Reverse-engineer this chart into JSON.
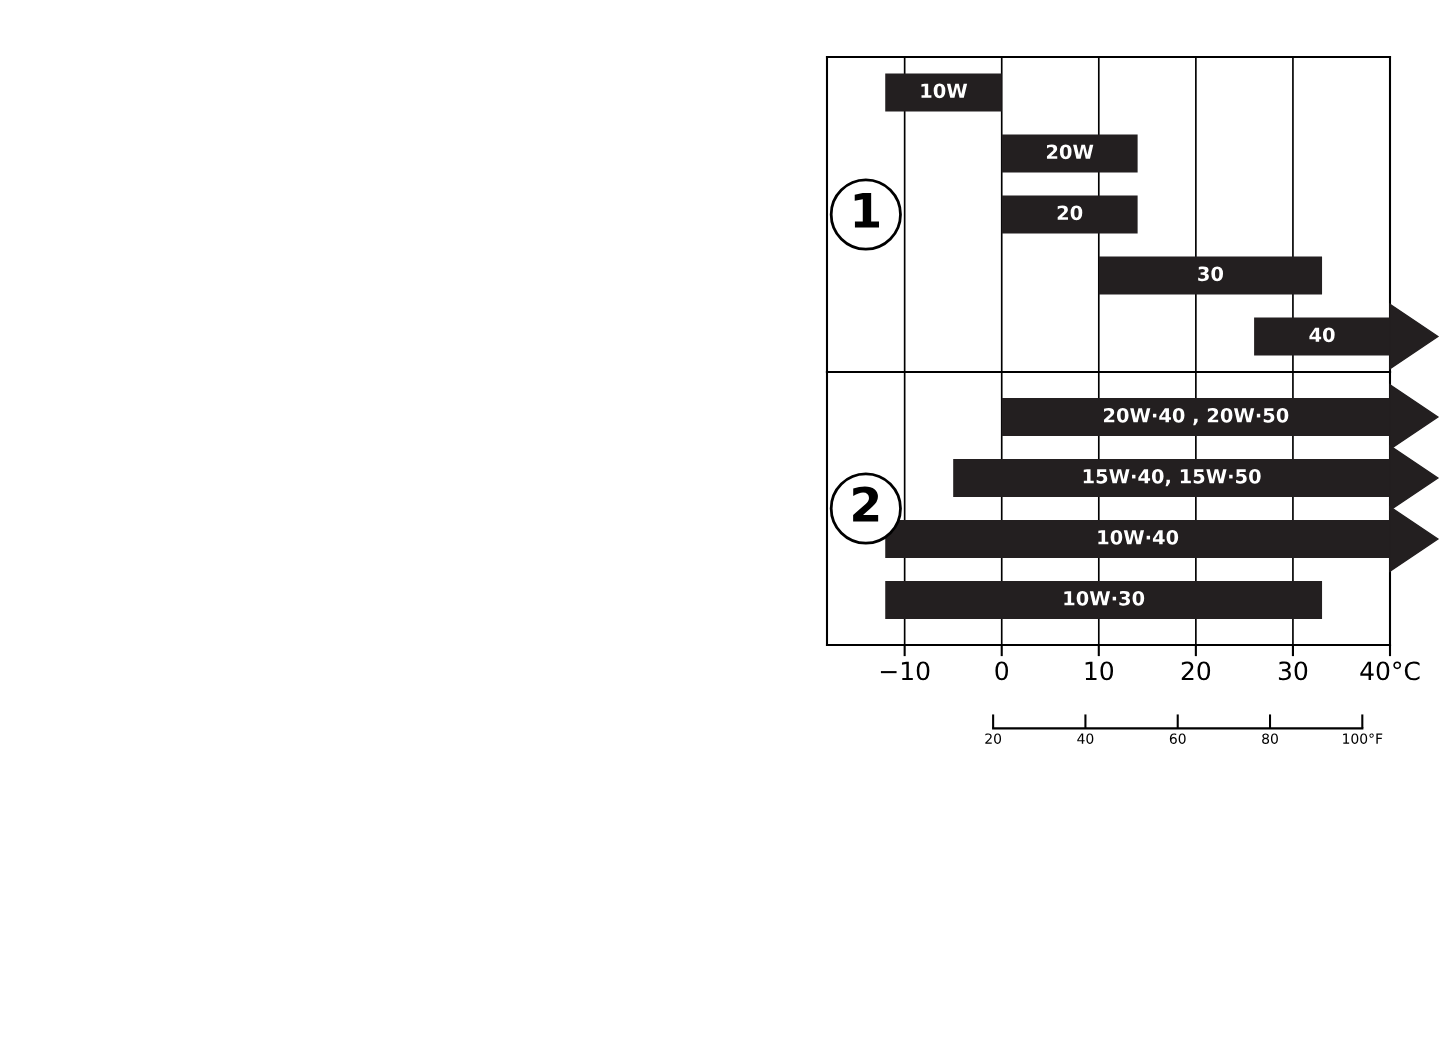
{
  "chart_data": [
    {
      "type": "bar",
      "orientation": "horizontal",
      "categories": [
        "10W",
        "20W",
        "20",
        "30",
        "40"
      ],
      "base": [
        -12,
        0,
        0,
        10,
        26
      ],
      "values": [
        12,
        14,
        14,
        23,
        14
      ],
      "color": "#231f20",
      "xlim": [
        -18,
        40
      ],
      "xticks": [
        -10,
        0,
        10,
        20,
        30,
        40
      ],
      "tick_labels": false,
      "grid": "x",
      "annotations": [
        "1"
      ]
    },
    {
      "type": "bar",
      "orientation": "horizontal",
      "categories": [
        "20W·40 , 20W·50",
        "15W·40, 15W·50",
        "10W·40",
        "10W·30"
      ],
      "base": [
        0,
        -5,
        -12,
        -12
      ],
      "values": [
        40,
        45,
        52,
        45
      ],
      "color": "#231f20",
      "xlim": [
        -18,
        40
      ],
      "xticks": [
        {
          "value": -10,
          "label": "−10"
        },
        0,
        10,
        20,
        30,
        {
          "value": 40,
          "label": "40°C"
        }
      ],
      "x2lim": [
        -16,
        106
      ],
      "x2ticks": [
        20,
        40,
        60,
        80,
        {
          "value": 100,
          "label": "100°F"
        }
      ],
      "grid": "x",
      "annotations": [
        "2"
      ]
    }
  ]
}
